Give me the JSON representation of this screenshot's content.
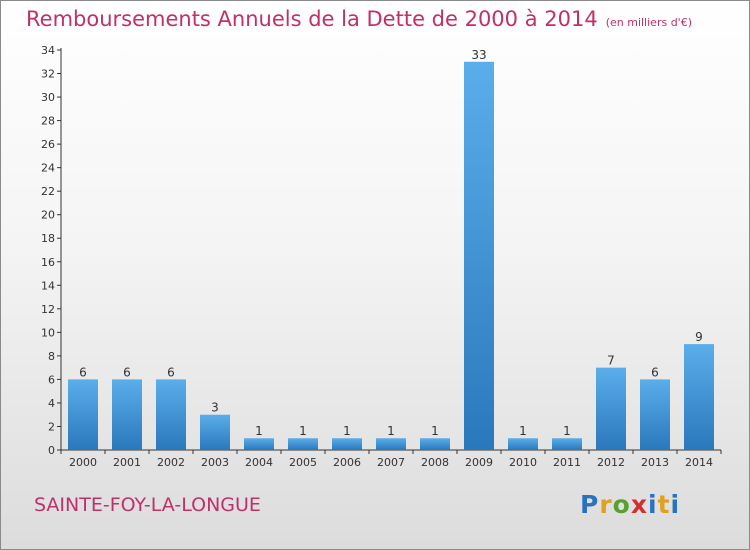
{
  "header": {
    "title": "Remboursements Annuels de la Dette de 2000 à 2014",
    "unit": "(en milliers d'€)"
  },
  "footer": {
    "commune": "SAINTE-FOY-LA-LONGUE",
    "logo_letters": [
      "P",
      "r",
      "o",
      "x",
      "i",
      "t",
      "i"
    ]
  },
  "colors": {
    "title": "#c0306a",
    "bar_top": "#5aaeea",
    "bar_bottom": "#2a78bc",
    "axis": "#333333"
  },
  "chart_data": {
    "type": "bar",
    "categories": [
      "2000",
      "2001",
      "2002",
      "2003",
      "2004",
      "2005",
      "2006",
      "2007",
      "2008",
      "2009",
      "2010",
      "2011",
      "2012",
      "2013",
      "2014"
    ],
    "values": [
      6,
      6,
      6,
      3,
      1,
      1,
      1,
      1,
      1,
      33,
      1,
      1,
      7,
      6,
      9
    ],
    "ylim": [
      0,
      34
    ],
    "yticks": [
      0,
      2,
      4,
      6,
      8,
      10,
      12,
      14,
      16,
      18,
      20,
      22,
      24,
      26,
      28,
      30,
      32,
      34
    ],
    "grid": false,
    "data_labels": true
  }
}
